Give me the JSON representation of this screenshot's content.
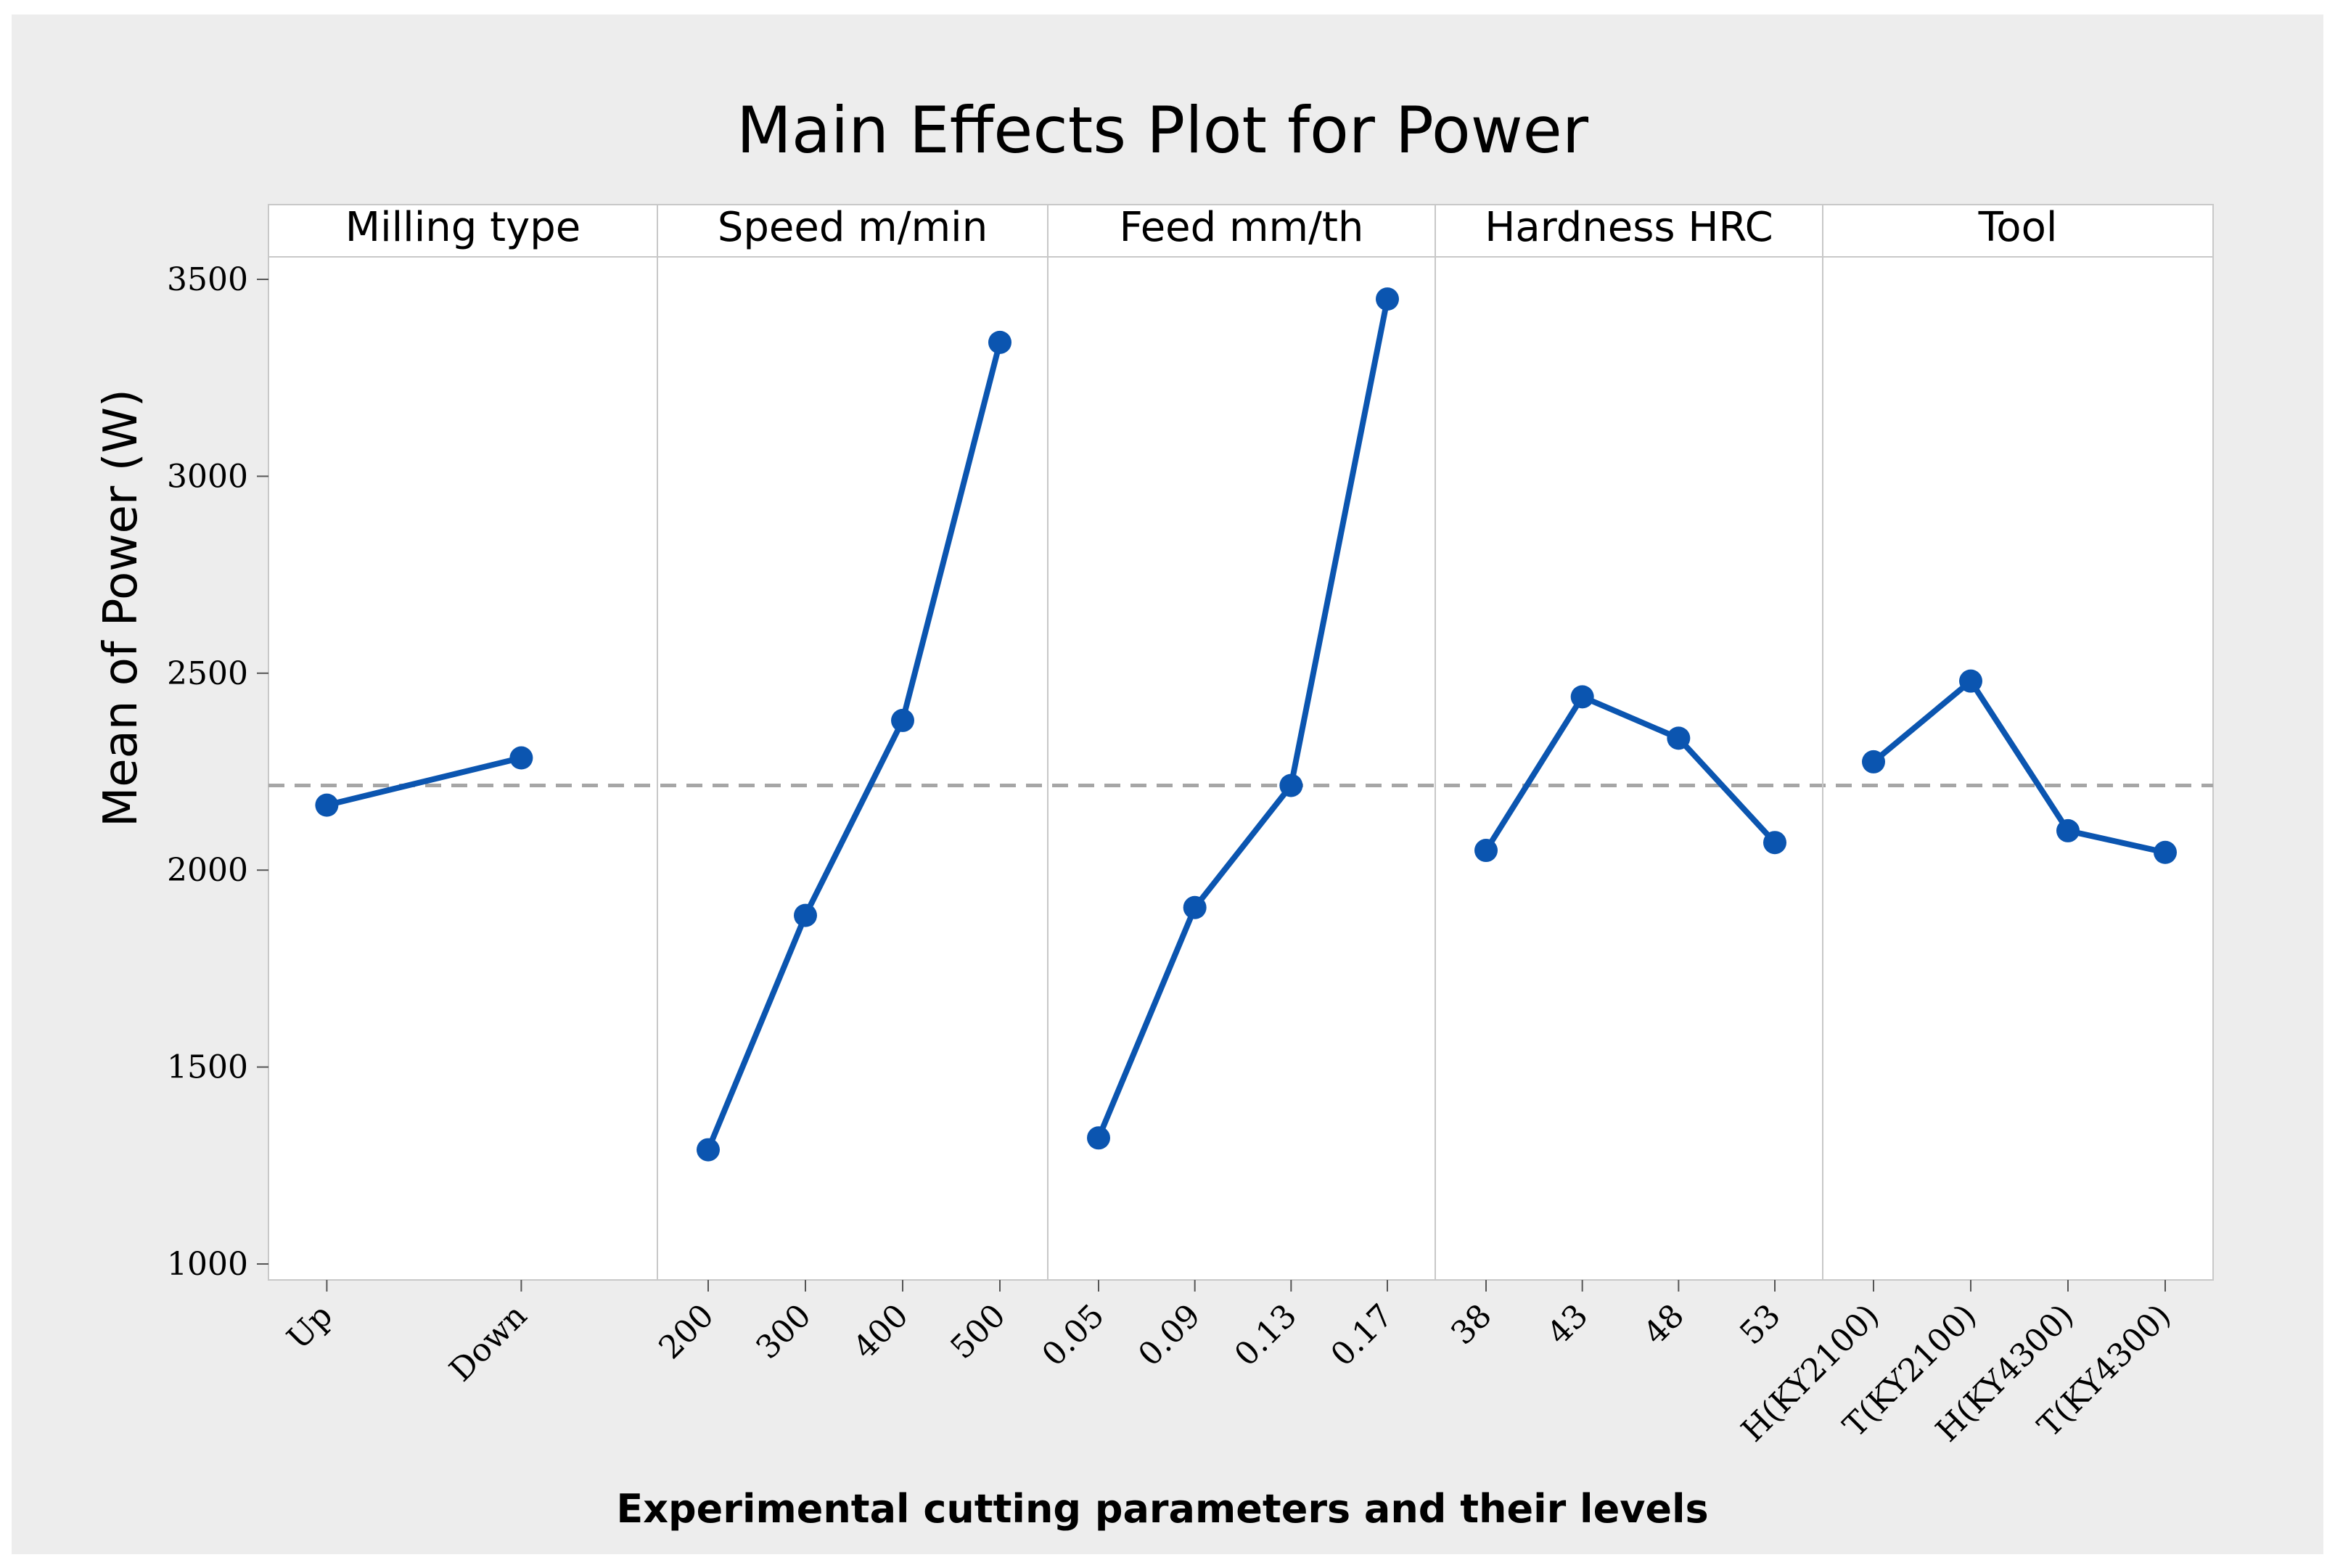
{
  "chart_data": {
    "type": "line",
    "title": "Main Effects Plot for Power",
    "xlabel": "Experimental cutting parameters and their levels",
    "ylabel": "Mean of Power (W)",
    "ylim": [
      1000,
      3600
    ],
    "yticks": [
      1000,
      1500,
      2000,
      2500,
      3000,
      3500
    ],
    "reference_line": 2215,
    "series_color": "#0b55b0",
    "reference_color": "#a6a6a6",
    "panels": [
      {
        "name": "Milling type",
        "categories": [
          "Up",
          "Down"
        ],
        "values": [
          2165,
          2285
        ]
      },
      {
        "name": "Speed m/min",
        "categories": [
          "200",
          "300",
          "400",
          "500"
        ],
        "values": [
          1290,
          1885,
          2380,
          3340
        ]
      },
      {
        "name": "Feed  mm/th",
        "categories": [
          "0.05",
          "0.09",
          "0.13",
          "0.17"
        ],
        "values": [
          1320,
          1905,
          2215,
          3450
        ]
      },
      {
        "name": "Hardness HRC",
        "categories": [
          "38",
          "43",
          "48",
          "53"
        ],
        "values": [
          2050,
          2440,
          2335,
          2070
        ]
      },
      {
        "name": "Tool",
        "categories": [
          "H(KY2100)",
          "T(KY2100)",
          "H(KY4300)",
          "T(KY4300)"
        ],
        "values": [
          2275,
          2480,
          2100,
          2045
        ]
      }
    ]
  }
}
